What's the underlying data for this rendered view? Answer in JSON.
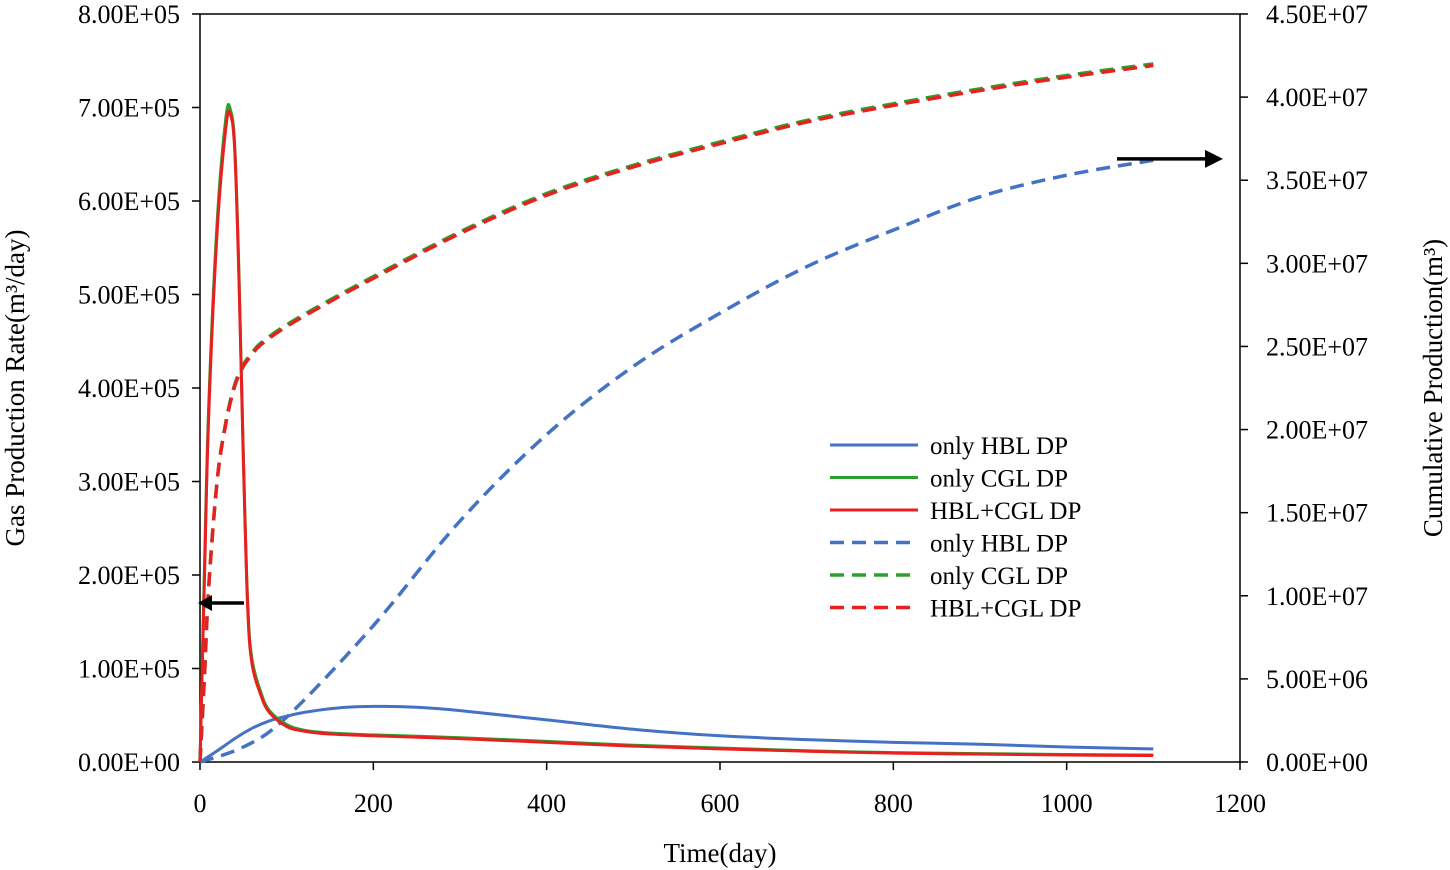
{
  "chart_data": {
    "type": "line",
    "title": "",
    "xlabel": "Time(day)",
    "ylabel_left": "Gas Production Rate(m³/day)",
    "ylabel_right": "Cumulative Production(m³)",
    "xlim": [
      0,
      1200
    ],
    "ylim_left": [
      0,
      800000
    ],
    "ylim_right": [
      0,
      45000000
    ],
    "x_ticks": [
      0,
      200,
      400,
      600,
      800,
      1000,
      1200
    ],
    "x_tick_labels": [
      "0",
      "200",
      "400",
      "600",
      "800",
      "1000",
      "1200"
    ],
    "y_left_ticks": [
      0,
      100000,
      200000,
      300000,
      400000,
      500000,
      600000,
      700000,
      800000
    ],
    "y_left_tick_labels": [
      "0.00E+00",
      "1.00E+05",
      "2.00E+05",
      "3.00E+05",
      "4.00E+05",
      "5.00E+05",
      "6.00E+05",
      "7.00E+05",
      "8.00E+05"
    ],
    "y_right_ticks": [
      0,
      5000000,
      10000000,
      15000000,
      20000000,
      25000000,
      30000000,
      35000000,
      40000000,
      45000000
    ],
    "y_right_tick_labels": [
      "0.00E+00",
      "5.00E+06",
      "1.00E+07",
      "1.50E+07",
      "2.00E+07",
      "2.50E+07",
      "3.00E+07",
      "3.50E+07",
      "4.00E+07",
      "4.50E+07"
    ],
    "grid": false,
    "legend_position": "center-right",
    "series": [
      {
        "name": "only HBL DP",
        "axis": "left",
        "style": "solid",
        "color": "#4472C4",
        "x": [
          0,
          20,
          40,
          60,
          80,
          100,
          120,
          150,
          180,
          210,
          250,
          300,
          400,
          500,
          600,
          700,
          800,
          900,
          1000,
          1100
        ],
        "y": [
          0,
          12000,
          25000,
          36000,
          44000,
          49000,
          53000,
          57000,
          59000,
          59500,
          58500,
          55000,
          45000,
          35000,
          28000,
          24000,
          21000,
          19000,
          16000,
          14000
        ]
      },
      {
        "name": "only CGL DP",
        "axis": "left",
        "style": "solid",
        "color": "#2CA02C",
        "x": [
          0,
          5,
          10,
          20,
          30,
          35,
          40,
          45,
          50,
          55,
          60,
          70,
          80,
          100,
          120,
          150,
          200,
          300,
          400,
          500,
          600,
          700,
          800,
          900,
          1000,
          1100
        ],
        "y": [
          0,
          200000,
          380000,
          580000,
          690000,
          698000,
          660000,
          520000,
          330000,
          170000,
          110000,
          75000,
          55000,
          40000,
          34000,
          31000,
          29000,
          26000,
          22000,
          18000,
          15000,
          12000,
          10000,
          9000,
          8000,
          7500
        ]
      },
      {
        "name": "HBL+CGL DP",
        "axis": "left",
        "style": "solid",
        "color": "#E82020",
        "x": [
          0,
          5,
          10,
          20,
          30,
          35,
          40,
          45,
          50,
          55,
          60,
          70,
          80,
          100,
          120,
          150,
          200,
          300,
          400,
          500,
          600,
          700,
          800,
          900,
          1000,
          1100
        ],
        "y": [
          0,
          190000,
          370000,
          570000,
          680000,
          693000,
          655000,
          515000,
          325000,
          165000,
          105000,
          72000,
          53000,
          38000,
          33000,
          30000,
          28000,
          25000,
          21000,
          17000,
          14000,
          11500,
          9500,
          8500,
          7500,
          7000
        ]
      },
      {
        "name": "only HBL DP",
        "axis": "right",
        "style": "dashed",
        "color": "#4472C4",
        "x": [
          0,
          50,
          100,
          200,
          300,
          400,
          500,
          600,
          700,
          800,
          900,
          1000,
          1100
        ],
        "y": [
          0,
          900000,
          2700000,
          8200000,
          14500000,
          19700000,
          23800000,
          27000000,
          29800000,
          32000000,
          34000000,
          35300000,
          36200000
        ]
      },
      {
        "name": "only CGL DP",
        "axis": "right",
        "style": "dashed",
        "color": "#2CA02C",
        "x": [
          0,
          5,
          10,
          20,
          30,
          40,
          50,
          60,
          70,
          100,
          150,
          200,
          300,
          400,
          500,
          600,
          700,
          800,
          900,
          1000,
          1100
        ],
        "y": [
          0,
          5000000,
          10500000,
          17000000,
          20500000,
          22700000,
          23900000,
          24600000,
          25200000,
          26300000,
          27800000,
          29200000,
          31900000,
          34200000,
          35900000,
          37300000,
          38600000,
          39600000,
          40500000,
          41300000,
          42000000
        ]
      },
      {
        "name": "HBL+CGL DP",
        "axis": "right",
        "style": "dashed",
        "color": "#E82020",
        "x": [
          0,
          5,
          10,
          20,
          30,
          40,
          50,
          60,
          70,
          100,
          150,
          200,
          300,
          400,
          500,
          600,
          700,
          800,
          900,
          1000,
          1100
        ],
        "y": [
          0,
          5000000,
          10500000,
          17000000,
          20400000,
          22600000,
          23800000,
          24500000,
          25100000,
          26200000,
          27700000,
          29100000,
          31800000,
          34100000,
          35800000,
          37200000,
          38500000,
          39500000,
          40400000,
          41200000,
          41900000
        ]
      }
    ],
    "annotations": [
      {
        "type": "arrow",
        "direction": "left",
        "meaning": "solid curves read on left axis",
        "at_x": 30,
        "at_y_left": 170000
      },
      {
        "type": "arrow",
        "direction": "right",
        "meaning": "dashed curves read on right axis",
        "at_x": 1125,
        "at_y_left": 645000
      }
    ]
  }
}
